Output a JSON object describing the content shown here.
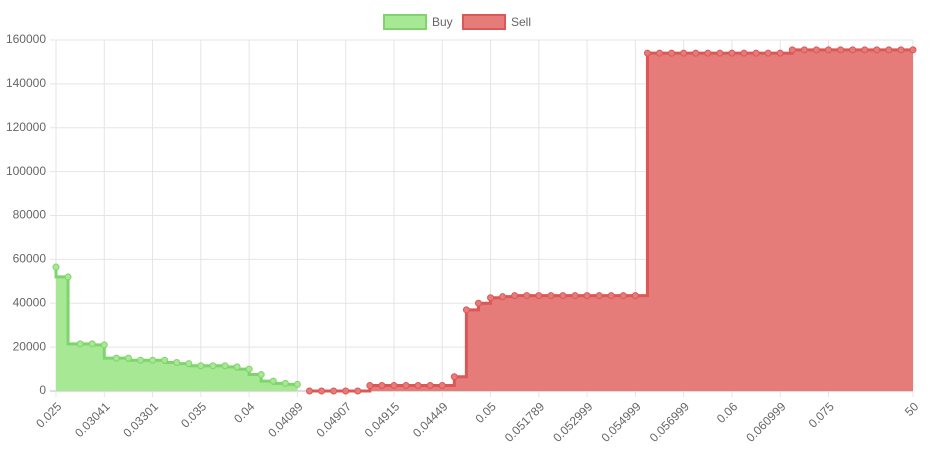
{
  "chart_data": {
    "type": "stepped-area",
    "legend": "top",
    "grid": true,
    "categories": [
      "0.025",
      null,
      null,
      null,
      "0.03041",
      null,
      null,
      null,
      "0.03301",
      null,
      null,
      null,
      "0.035",
      null,
      null,
      null,
      "0.04",
      null,
      null,
      null,
      "0.04089",
      null,
      null,
      null,
      "0.04907",
      null,
      null,
      null,
      "0.04915",
      null,
      null,
      null,
      "0.04449",
      null,
      null,
      null,
      "0.05",
      null,
      null,
      null,
      "0.051789",
      null,
      null,
      null,
      "0.052999",
      null,
      null,
      null,
      "0.054999",
      null,
      null,
      null,
      "0.056999",
      null,
      null,
      null,
      "0.06",
      null,
      null,
      null,
      "0.060999",
      null,
      null,
      null,
      "0.075",
      null,
      null,
      null,
      null,
      null,
      null,
      "50"
    ],
    "series": [
      {
        "name": "Buy",
        "color": "#7fd46b",
        "fill": "#a6e893",
        "stepped": "before",
        "values": [
          56500,
          52000,
          21500,
          21500,
          21000,
          15000,
          15000,
          14000,
          14000,
          14000,
          13000,
          12500,
          11500,
          11500,
          11500,
          11000,
          10000,
          7500,
          4500,
          3500,
          3000,
          null,
          null,
          null,
          null,
          null,
          null,
          null,
          null,
          null,
          null,
          null,
          null,
          null,
          null,
          null,
          null,
          null,
          null,
          null,
          null,
          null,
          null,
          null,
          null,
          null,
          null,
          null,
          null,
          null,
          null,
          null,
          null,
          null,
          null,
          null,
          null,
          null,
          null,
          null,
          null,
          null,
          null,
          null,
          null,
          null,
          null,
          null,
          null,
          null,
          null,
          null
        ]
      },
      {
        "name": "Sell",
        "color": "#dc5755",
        "fill": "#e67c7a",
        "stepped": "after",
        "values": [
          null,
          null,
          null,
          null,
          null,
          null,
          null,
          null,
          null,
          null,
          null,
          null,
          null,
          null,
          null,
          null,
          null,
          null,
          null,
          null,
          null,
          0,
          0,
          0,
          0,
          0,
          2500,
          2500,
          2500,
          2500,
          2500,
          2500,
          2500,
          6500,
          37000,
          40000,
          42500,
          43000,
          43500,
          43500,
          43500,
          43500,
          43500,
          43500,
          43500,
          43500,
          43500,
          43500,
          43500,
          154000,
          154000,
          154000,
          154000,
          154000,
          154000,
          154000,
          154000,
          154000,
          154000,
          154000,
          154000,
          155500,
          155500,
          155500,
          155500,
          155500,
          155500,
          155500,
          155500,
          155500,
          155500,
          155500
        ]
      }
    ],
    "ylim": [
      0,
      160000
    ],
    "yticks": [
      0,
      20000,
      40000,
      60000,
      80000,
      100000,
      120000,
      140000,
      160000
    ]
  }
}
